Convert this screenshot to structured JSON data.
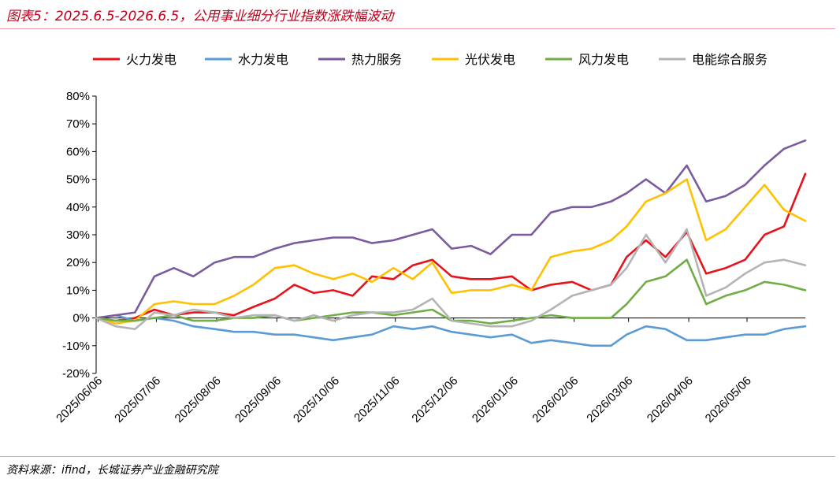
{
  "header": {
    "title": "图表5：2025.6.5-2026.6.5，公用事业细分行业指数涨跌幅波动"
  },
  "footer": {
    "source": "资料来源：ifind，长城证券产业金融研究院"
  },
  "chart_data": {
    "type": "line",
    "title": "图表5：2025.6.5-2026.6.5，公用事业细分行业指数涨跌幅波动",
    "xlabel": "",
    "ylabel": "",
    "ylim": [
      -20,
      80
    ],
    "yticks": [
      -20,
      -10,
      0,
      10,
      20,
      30,
      40,
      50,
      60,
      70,
      80
    ],
    "ytick_labels": [
      "-20%",
      "-10%",
      "0%",
      "10%",
      "20%",
      "30%",
      "40%",
      "50%",
      "60%",
      "70%",
      "80%"
    ],
    "xlim": [
      "2025-06-05",
      "2026-06-05"
    ],
    "xticks": [
      "2025/06/06",
      "2025/07/06",
      "2025/08/06",
      "2025/09/06",
      "2025/10/06",
      "2025/11/06",
      "2025/12/06",
      "2026/01/06",
      "2026/02/06",
      "2026/03/06",
      "2026/04/06",
      "2026/05/06"
    ],
    "legend_position": "top",
    "grid": false,
    "x": [
      "2025-06-05",
      "2025-06-15",
      "2025-06-25",
      "2025-07-05",
      "2025-07-15",
      "2025-07-25",
      "2025-08-05",
      "2025-08-15",
      "2025-08-25",
      "2025-09-05",
      "2025-09-15",
      "2025-09-25",
      "2025-10-05",
      "2025-10-15",
      "2025-10-25",
      "2025-11-05",
      "2025-11-15",
      "2025-11-25",
      "2025-12-05",
      "2025-12-15",
      "2025-12-25",
      "2026-01-05",
      "2026-01-15",
      "2026-01-25",
      "2026-02-05",
      "2026-02-15",
      "2026-02-25",
      "2026-03-05",
      "2026-03-15",
      "2026-03-25",
      "2026-04-05",
      "2026-04-15",
      "2026-04-25",
      "2026-05-05",
      "2026-05-15",
      "2026-05-25",
      "2026-06-05"
    ],
    "series": [
      {
        "name": "火力发电",
        "color": "#e8121b",
        "values": [
          0,
          -1,
          0,
          3,
          1,
          2,
          2,
          1,
          4,
          7,
          12,
          9,
          10,
          8,
          15,
          14,
          19,
          21,
          15,
          14,
          14,
          15,
          10,
          12,
          13,
          10,
          12,
          22,
          28,
          22,
          31,
          16,
          18,
          21,
          30,
          33,
          52
        ]
      },
      {
        "name": "水力发电",
        "color": "#5b9bd5",
        "values": [
          0,
          1,
          -1,
          0,
          -1,
          -3,
          -4,
          -5,
          -5,
          -6,
          -6,
          -7,
          -8,
          -7,
          -6,
          -3,
          -4,
          -3,
          -5,
          -6,
          -7,
          -6,
          -9,
          -8,
          -9,
          -10,
          -10,
          -6,
          -3,
          -4,
          -8,
          -8,
          -7,
          -6,
          -6,
          -4,
          -3
        ]
      },
      {
        "name": "热力服务",
        "color": "#7a5b9e",
        "values": [
          0,
          1,
          2,
          15,
          18,
          15,
          20,
          22,
          22,
          25,
          27,
          28,
          29,
          29,
          27,
          28,
          30,
          32,
          25,
          26,
          23,
          30,
          30,
          38,
          40,
          40,
          42,
          45,
          50,
          45,
          55,
          42,
          44,
          48,
          55,
          61,
          64
        ]
      },
      {
        "name": "光伏发电",
        "color": "#ffc000",
        "values": [
          0,
          -2,
          -1,
          5,
          6,
          5,
          5,
          8,
          12,
          18,
          19,
          16,
          14,
          16,
          13,
          18,
          14,
          20,
          9,
          10,
          10,
          12,
          10,
          22,
          24,
          25,
          28,
          33,
          42,
          45,
          50,
          28,
          32,
          40,
          48,
          39,
          35
        ]
      },
      {
        "name": "风力发电",
        "color": "#70ad47",
        "values": [
          0,
          -1,
          -1,
          0,
          1,
          -1,
          -1,
          0,
          0,
          1,
          -1,
          0,
          1,
          2,
          2,
          1,
          2,
          3,
          -1,
          -1,
          -2,
          -1,
          0,
          1,
          0,
          0,
          0,
          5,
          13,
          15,
          21,
          5,
          8,
          10,
          13,
          12,
          10
        ]
      },
      {
        "name": "电能综合服务",
        "color": "#b4b4b4",
        "values": [
          0,
          -3,
          -4,
          2,
          1,
          3,
          2,
          0,
          1,
          1,
          -1,
          1,
          -1,
          1,
          2,
          2,
          3,
          7,
          -1,
          -2,
          -3,
          -3,
          -1,
          3,
          8,
          10,
          12,
          18,
          30,
          20,
          32,
          8,
          11,
          16,
          20,
          21,
          19
        ]
      }
    ]
  }
}
